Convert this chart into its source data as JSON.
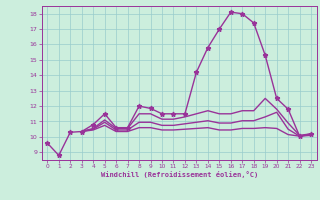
{
  "title": "",
  "xlabel": "Windchill (Refroidissement éolien,°C)",
  "bg_color": "#cceedd",
  "line_color": "#993399",
  "grid_color": "#99cccc",
  "xlim": [
    -0.5,
    23.5
  ],
  "ylim": [
    8.5,
    18.5
  ],
  "yticks": [
    9,
    10,
    11,
    12,
    13,
    14,
    15,
    16,
    17,
    18
  ],
  "xticks": [
    0,
    1,
    2,
    3,
    4,
    5,
    6,
    7,
    8,
    9,
    10,
    11,
    12,
    13,
    14,
    15,
    16,
    17,
    18,
    19,
    20,
    21,
    22,
    23
  ],
  "lines": [
    {
      "x": [
        0,
        1,
        2,
        3,
        4,
        5,
        6,
        7,
        8,
        9,
        10,
        11,
        12,
        13,
        14,
        15,
        16,
        17,
        18,
        19,
        20,
        21,
        22,
        23
      ],
      "y": [
        9.6,
        8.8,
        10.3,
        10.35,
        10.8,
        11.5,
        10.6,
        10.6,
        12.0,
        11.85,
        11.5,
        11.5,
        11.5,
        14.2,
        15.8,
        17.0,
        18.1,
        18.0,
        17.4,
        15.3,
        12.5,
        11.8,
        10.05,
        10.2
      ],
      "marker": "*",
      "ms": 3.5,
      "lw": 1.0
    },
    {
      "x": [
        3,
        4,
        5,
        6,
        7,
        8,
        9,
        10,
        11,
        12,
        13,
        14,
        15,
        16,
        17,
        18,
        19,
        20,
        21,
        22,
        23
      ],
      "y": [
        10.35,
        10.55,
        11.1,
        10.55,
        10.55,
        11.5,
        11.5,
        11.15,
        11.15,
        11.3,
        11.5,
        11.7,
        11.5,
        11.5,
        11.7,
        11.7,
        12.5,
        11.8,
        10.9,
        10.1,
        10.2
      ],
      "marker": null,
      "ms": 0,
      "lw": 1.0
    },
    {
      "x": [
        3,
        4,
        5,
        6,
        7,
        8,
        9,
        10,
        11,
        12,
        13,
        14,
        15,
        16,
        17,
        18,
        19,
        20,
        21,
        22,
        23
      ],
      "y": [
        10.35,
        10.5,
        10.95,
        10.45,
        10.45,
        10.95,
        10.95,
        10.75,
        10.75,
        10.85,
        10.95,
        11.05,
        10.9,
        10.9,
        11.05,
        11.05,
        11.3,
        11.6,
        10.5,
        10.05,
        10.15
      ],
      "marker": null,
      "ms": 0,
      "lw": 1.0
    },
    {
      "x": [
        3,
        4,
        5,
        6,
        7,
        8,
        9,
        10,
        11,
        12,
        13,
        14,
        15,
        16,
        17,
        18,
        19,
        20,
        21,
        22,
        23
      ],
      "y": [
        10.35,
        10.45,
        10.75,
        10.35,
        10.35,
        10.6,
        10.6,
        10.45,
        10.45,
        10.5,
        10.55,
        10.6,
        10.45,
        10.45,
        10.55,
        10.55,
        10.6,
        10.55,
        10.15,
        10.05,
        10.1
      ],
      "marker": null,
      "ms": 0,
      "lw": 1.0
    }
  ]
}
